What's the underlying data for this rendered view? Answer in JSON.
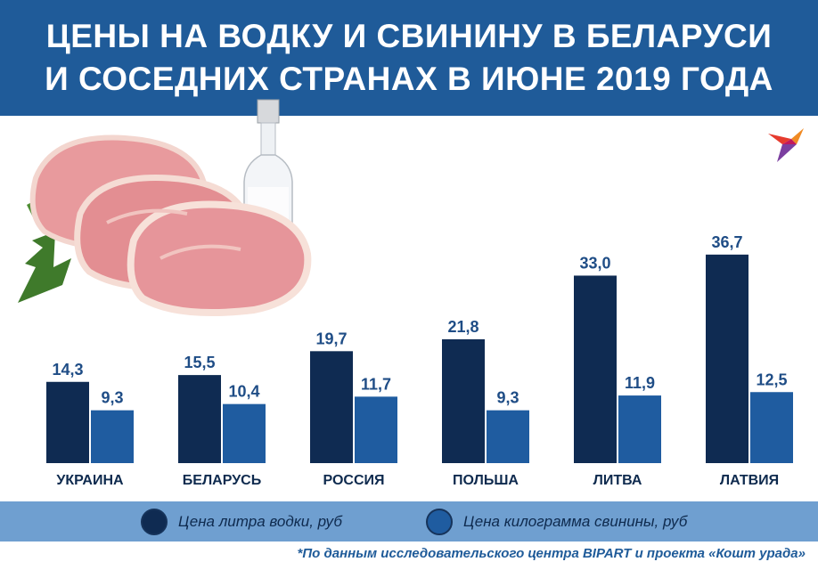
{
  "header": {
    "title_line1": "ЦЕНЫ НА ВОДКУ И СВИНИНУ В БЕЛАРУСИ",
    "title_line2": "И СОСЕДНИХ СТРАНАХ В ИЮНЕ 2019 ГОДА"
  },
  "colors": {
    "header_bg": "#1f5b99",
    "vodka": "#0f2b52",
    "pork": "#1f5ca0",
    "value_text": "#1f4d86",
    "legend_band": "#6f9fd0"
  },
  "chart_data": {
    "type": "bar",
    "title": "ЦЕНЫ НА ВОДКУ И СВИНИНУ В БЕЛАРУСИ И СОСЕДНИХ СТРАНАХ В ИЮНЕ 2019 ГОДА",
    "categories": [
      "УКРАИНА",
      "БЕЛАРУСЬ",
      "РОССИЯ",
      "ПОЛЬША",
      "ЛИТВА",
      "ЛАТВИЯ"
    ],
    "series": [
      {
        "name": "Цена литра водки, руб",
        "values": [
          14.3,
          15.5,
          19.7,
          21.8,
          33.0,
          36.7
        ],
        "labels": [
          "14,3",
          "15,5",
          "19,7",
          "21,8",
          "33,0",
          "36,7"
        ]
      },
      {
        "name": "Цена килограмма свинины, руб",
        "values": [
          9.3,
          10.4,
          11.7,
          9.3,
          11.9,
          12.5
        ],
        "labels": [
          "9,3",
          "10,4",
          "11,7",
          "9,3",
          "11,9",
          "12,5"
        ]
      }
    ],
    "ylim": [
      0,
      40
    ],
    "grid": false,
    "legend_position": "bottom"
  },
  "legend": {
    "vodka_label": "Цена литра водки, руб",
    "pork_label": "Цена килограмма свинины, руб"
  },
  "footnote": "*По данным исследовательского центра BIPART и проекта «Кошт урада»"
}
